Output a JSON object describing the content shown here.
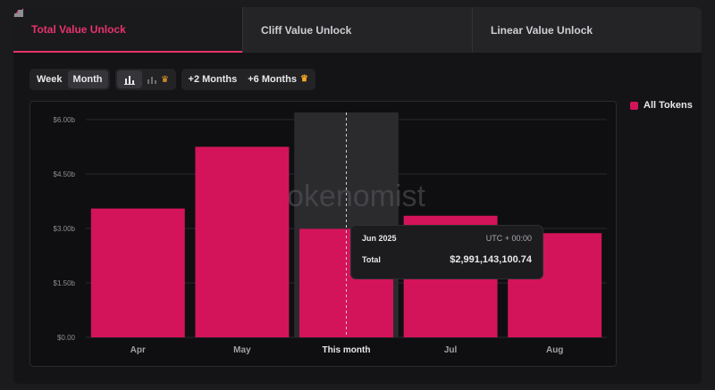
{
  "tabs": [
    {
      "label": "Total Value Unlock",
      "active": true
    },
    {
      "label": "Cliff Value Unlock",
      "active": false
    },
    {
      "label": "Linear Value Unlock",
      "active": false
    }
  ],
  "controls": {
    "period": [
      "Week",
      "Month"
    ],
    "selected_period": "Month",
    "ranges": [
      "+2 Months",
      "+6 Months"
    ]
  },
  "legend": {
    "label": "All Tokens",
    "color": "#d4145a"
  },
  "watermark": "okenomist",
  "tooltip": {
    "date": "Jun 2025",
    "timezone": "UTC + 00:00",
    "label": "Total",
    "value": "$2,991,143,100.74"
  },
  "colors": {
    "bar": "#d4145a",
    "accent": "#e8336d",
    "highlight": "#2b2b2e"
  },
  "chart_data": {
    "type": "bar",
    "categories": [
      "Apr",
      "May",
      "This month",
      "Jul",
      "Aug"
    ],
    "series": [
      {
        "name": "All Tokens",
        "values": [
          3.55,
          5.25,
          2.99,
          3.35,
          2.87
        ]
      }
    ],
    "ylim": [
      0,
      6
    ],
    "yticks": [
      0,
      1.5,
      3,
      4.5,
      6
    ],
    "ytick_labels": [
      "$0.00",
      "$1.50b",
      "$3.00b",
      "$4.50b",
      "$6.00b"
    ],
    "highlighted_category": "This month",
    "grid": true
  }
}
